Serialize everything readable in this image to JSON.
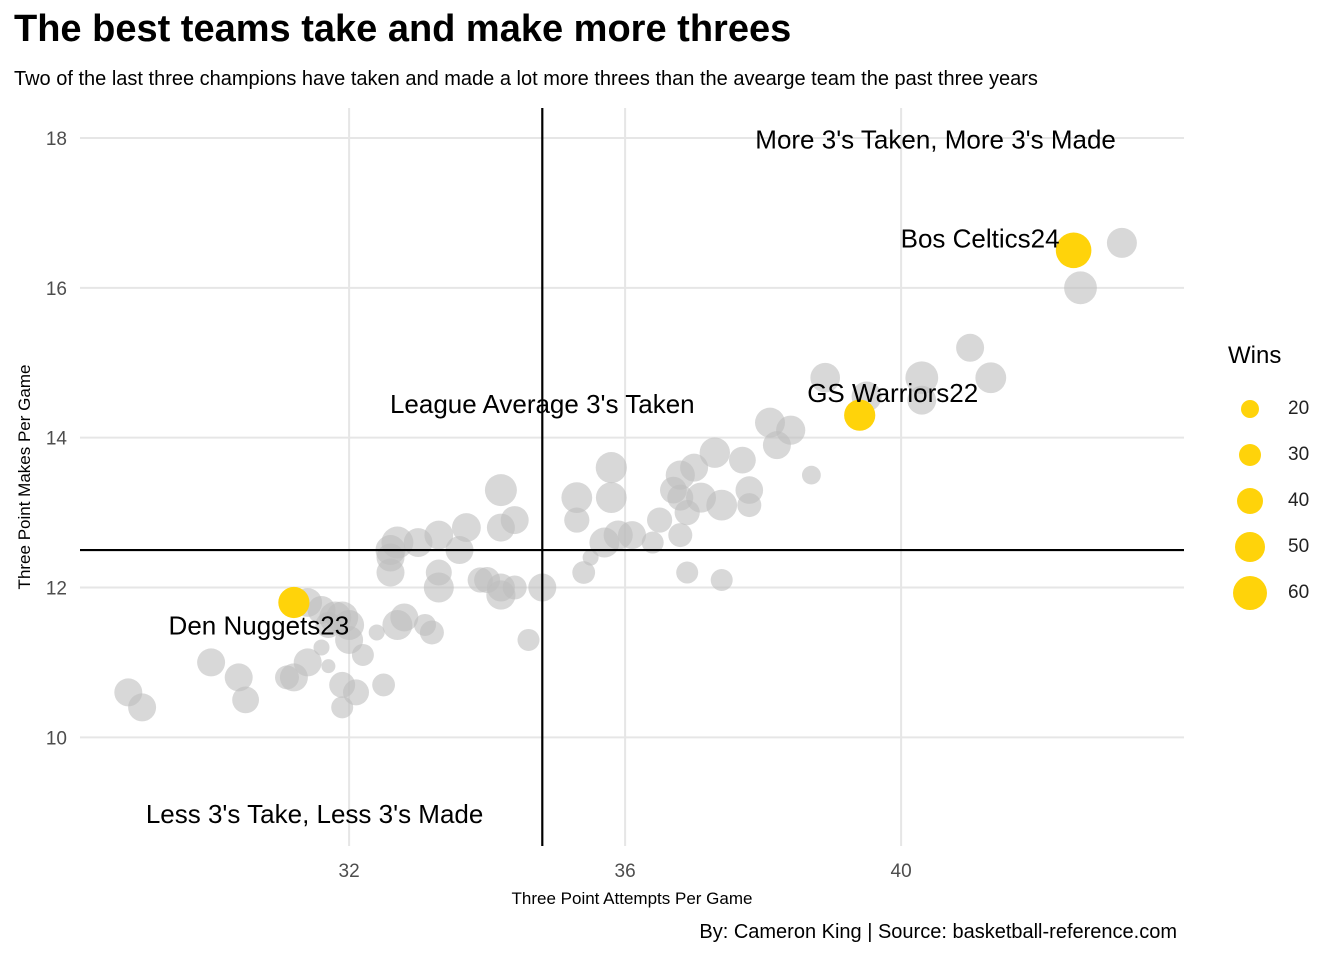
{
  "title": "The best teams take and make more threes",
  "subtitle": "Two of the last three champions have taken and made a lot more threes than the avearge team the past three years",
  "caption": "By: Cameron King  |  Source: basketball-reference.com",
  "colors": {
    "highlight": "#FFD30A",
    "other": "#BEBEBE",
    "grid": "#E6E6E6",
    "reference_line": "#000000"
  },
  "chart_data": {
    "type": "scatter",
    "xlabel": "Three Point Attempts Per Game",
    "ylabel": "Three Point Makes Per Game",
    "xlim": [
      28.1,
      44.1
    ],
    "ylim": [
      8.55,
      18.4
    ],
    "x_ticks": [
      "32",
      "36",
      "40"
    ],
    "y_ticks": [
      "10",
      "12",
      "14",
      "16",
      "18"
    ],
    "grid": true,
    "reference_lines": {
      "x": 34.8,
      "y": 12.5
    },
    "quadrant_labels": [
      {
        "text": "More 3's Taken, More 3's Made",
        "x": 40.5,
        "y": 17.98
      },
      {
        "text": "League Average 3's Taken",
        "x": 34.8,
        "y": 14.45
      },
      {
        "text": "Less 3's Take, Less 3's Made",
        "x": 31.5,
        "y": 8.98
      }
    ],
    "size_legend": {
      "title": "Wins",
      "values": [
        20,
        30,
        40,
        50,
        60
      ],
      "position": "right"
    },
    "highlighted": [
      {
        "label": "Bos Celtics24",
        "x": 42.5,
        "y": 16.5,
        "wins": 64
      },
      {
        "label": "GS Warriors22",
        "x": 39.4,
        "y": 14.3,
        "wins": 53
      },
      {
        "label": "Den Nuggets23",
        "x": 31.2,
        "y": 11.8,
        "wins": 53
      }
    ],
    "teams": [
      {
        "x": 43.2,
        "y": 16.6,
        "wins": 50
      },
      {
        "x": 42.6,
        "y": 16.0,
        "wins": 57
      },
      {
        "x": 41.0,
        "y": 15.2,
        "wins": 45
      },
      {
        "x": 41.3,
        "y": 14.8,
        "wins": 52
      },
      {
        "x": 40.3,
        "y": 14.8,
        "wins": 57
      },
      {
        "x": 40.3,
        "y": 14.5,
        "wins": 47
      },
      {
        "x": 38.9,
        "y": 14.8,
        "wins": 49
      },
      {
        "x": 39.5,
        "y": 14.55,
        "wins": 50
      },
      {
        "x": 38.1,
        "y": 14.2,
        "wins": 50
      },
      {
        "x": 38.4,
        "y": 14.1,
        "wins": 48
      },
      {
        "x": 38.2,
        "y": 13.9,
        "wins": 45
      },
      {
        "x": 38.7,
        "y": 13.5,
        "wins": 22
      },
      {
        "x": 37.3,
        "y": 13.8,
        "wins": 51
      },
      {
        "x": 37.7,
        "y": 13.7,
        "wins": 42
      },
      {
        "x": 37.8,
        "y": 13.3,
        "wins": 44
      },
      {
        "x": 37.8,
        "y": 13.1,
        "wins": 35
      },
      {
        "x": 37.4,
        "y": 13.1,
        "wins": 52
      },
      {
        "x": 36.8,
        "y": 13.5,
        "wins": 48
      },
      {
        "x": 37.0,
        "y": 13.6,
        "wins": 45
      },
      {
        "x": 37.1,
        "y": 13.2,
        "wins": 50
      },
      {
        "x": 36.7,
        "y": 13.3,
        "wins": 42
      },
      {
        "x": 36.8,
        "y": 13.2,
        "wins": 40
      },
      {
        "x": 36.9,
        "y": 13.0,
        "wins": 38
      },
      {
        "x": 36.5,
        "y": 12.9,
        "wins": 38
      },
      {
        "x": 36.8,
        "y": 12.7,
        "wins": 35
      },
      {
        "x": 36.4,
        "y": 12.6,
        "wins": 30
      },
      {
        "x": 35.8,
        "y": 13.6,
        "wins": 53
      },
      {
        "x": 35.3,
        "y": 13.2,
        "wins": 52
      },
      {
        "x": 35.8,
        "y": 13.2,
        "wins": 52
      },
      {
        "x": 35.3,
        "y": 12.9,
        "wins": 38
      },
      {
        "x": 35.7,
        "y": 12.6,
        "wins": 50
      },
      {
        "x": 35.9,
        "y": 12.7,
        "wins": 48
      },
      {
        "x": 36.1,
        "y": 12.7,
        "wins": 45
      },
      {
        "x": 35.4,
        "y": 12.2,
        "wins": 32
      },
      {
        "x": 35.5,
        "y": 12.4,
        "wins": 15
      },
      {
        "x": 36.9,
        "y": 12.2,
        "wins": 30
      },
      {
        "x": 37.4,
        "y": 12.1,
        "wins": 30
      },
      {
        "x": 34.2,
        "y": 13.3,
        "wins": 55
      },
      {
        "x": 34.2,
        "y": 12.8,
        "wins": 45
      },
      {
        "x": 34.4,
        "y": 12.9,
        "wins": 45
      },
      {
        "x": 33.7,
        "y": 12.8,
        "wins": 47
      },
      {
        "x": 33.3,
        "y": 12.7,
        "wins": 47
      },
      {
        "x": 33.0,
        "y": 12.6,
        "wins": 47
      },
      {
        "x": 33.6,
        "y": 12.5,
        "wins": 45
      },
      {
        "x": 32.7,
        "y": 12.6,
        "wins": 55
      },
      {
        "x": 32.6,
        "y": 12.5,
        "wins": 50
      },
      {
        "x": 32.6,
        "y": 12.4,
        "wins": 45
      },
      {
        "x": 32.6,
        "y": 12.2,
        "wins": 45
      },
      {
        "x": 33.3,
        "y": 12.2,
        "wins": 40
      },
      {
        "x": 33.3,
        "y": 12.0,
        "wins": 50
      },
      {
        "x": 33.9,
        "y": 12.1,
        "wins": 38
      },
      {
        "x": 34.0,
        "y": 12.1,
        "wins": 40
      },
      {
        "x": 34.2,
        "y": 12.0,
        "wins": 45
      },
      {
        "x": 34.2,
        "y": 11.9,
        "wins": 48
      },
      {
        "x": 34.4,
        "y": 12.0,
        "wins": 35
      },
      {
        "x": 34.8,
        "y": 12.0,
        "wins": 45
      },
      {
        "x": 34.6,
        "y": 11.3,
        "wins": 30
      },
      {
        "x": 31.4,
        "y": 11.8,
        "wins": 47
      },
      {
        "x": 31.6,
        "y": 11.7,
        "wins": 45
      },
      {
        "x": 31.8,
        "y": 11.6,
        "wins": 55
      },
      {
        "x": 31.9,
        "y": 11.6,
        "wins": 55
      },
      {
        "x": 32.0,
        "y": 11.5,
        "wins": 50
      },
      {
        "x": 31.7,
        "y": 11.5,
        "wins": 40
      },
      {
        "x": 32.0,
        "y": 11.3,
        "wins": 45
      },
      {
        "x": 32.2,
        "y": 11.1,
        "wins": 30
      },
      {
        "x": 32.4,
        "y": 11.4,
        "wins": 15
      },
      {
        "x": 32.7,
        "y": 11.5,
        "wins": 50
      },
      {
        "x": 32.8,
        "y": 11.6,
        "wins": 45
      },
      {
        "x": 33.1,
        "y": 11.5,
        "wins": 30
      },
      {
        "x": 33.2,
        "y": 11.4,
        "wins": 35
      },
      {
        "x": 31.6,
        "y": 11.2,
        "wins": 15
      },
      {
        "x": 31.4,
        "y": 11.0,
        "wins": 45
      },
      {
        "x": 31.2,
        "y": 10.8,
        "wins": 45
      },
      {
        "x": 31.1,
        "y": 10.8,
        "wins": 35
      },
      {
        "x": 31.7,
        "y": 10.95,
        "wins": 10
      },
      {
        "x": 30.0,
        "y": 11.0,
        "wins": 45
      },
      {
        "x": 30.4,
        "y": 10.8,
        "wins": 45
      },
      {
        "x": 30.5,
        "y": 10.5,
        "wins": 42
      },
      {
        "x": 31.9,
        "y": 10.7,
        "wins": 40
      },
      {
        "x": 32.1,
        "y": 10.6,
        "wins": 40
      },
      {
        "x": 31.9,
        "y": 10.4,
        "wins": 30
      },
      {
        "x": 32.5,
        "y": 10.7,
        "wins": 32
      },
      {
        "x": 28.8,
        "y": 10.6,
        "wins": 45
      },
      {
        "x": 29.0,
        "y": 10.4,
        "wins": 45
      }
    ]
  }
}
